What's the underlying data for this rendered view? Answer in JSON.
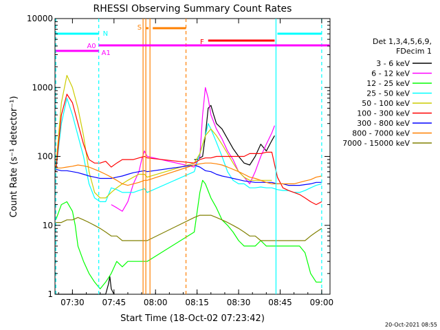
{
  "chart_data": {
    "type": "line",
    "title": "RHESSI Observing Summary Count Rates",
    "xlabel": "Start Time (18-Oct-02 07:23:42)",
    "ylabel": "Count Rate (s⁻¹ detector⁻¹)",
    "yscale": "log",
    "ylim": [
      1,
      10000
    ],
    "xlim": [
      "07:23:42",
      "09:03:00"
    ],
    "x_ticks": [
      "07:30",
      "07:45",
      "08:00",
      "08:15",
      "08:30",
      "08:45",
      "09:00"
    ],
    "y_ticks": [
      "1",
      "10",
      "100",
      "1000",
      "10000"
    ],
    "legend": {
      "header": [
        "Det 1,3,4,5,6,9,",
        "FDecim 1"
      ],
      "placement": "right"
    },
    "series": [
      {
        "name": "3 - 6 keV",
        "color": "#000000",
        "x": [
          "07:24",
          "07:26",
          "07:28",
          "07:30",
          "07:32",
          "07:34",
          "07:36",
          "07:38",
          "07:40",
          "07:42",
          "07:43",
          "07:43.5",
          "07:44",
          "07:45",
          "07:50",
          "07:55",
          "07:57",
          "08:14",
          "08:15",
          "08:17",
          "08:18",
          "08:19",
          "08:20",
          "08:21",
          "08:22",
          "08:24",
          "08:26",
          "08:28",
          "08:30",
          "08:32",
          "08:34",
          "08:36",
          "08:38",
          "08:40",
          "08:42",
          "08:43"
        ],
        "y": [
          1,
          1,
          1,
          1,
          1,
          1,
          1,
          1,
          1,
          1,
          1.4,
          1.8,
          1.2,
          1,
          null,
          null,
          null,
          90,
          90,
          100,
          200,
          500,
          550,
          400,
          300,
          250,
          180,
          130,
          100,
          80,
          75,
          100,
          150,
          120,
          170,
          200
        ]
      },
      {
        "name": "6 - 12 keV",
        "color": "#ff00ff",
        "x": [
          "07:44",
          "07:46",
          "07:48",
          "07:50",
          "07:52",
          "07:54",
          "07:55",
          "07:56",
          "07:57",
          "08:14",
          "08:16",
          "08:17",
          "08:18",
          "08:19",
          "08:20",
          "08:22",
          "08:24",
          "08:26",
          "08:28",
          "08:30",
          "08:32",
          "08:34",
          "08:36",
          "08:38",
          "08:40",
          "08:42",
          "08:43"
        ],
        "y": [
          20,
          18,
          16,
          22,
          40,
          60,
          90,
          120,
          100,
          70,
          100,
          400,
          1000,
          700,
          400,
          250,
          180,
          120,
          90,
          60,
          50,
          40,
          60,
          100,
          150,
          220,
          280
        ]
      },
      {
        "name": "12 - 25 keV",
        "color": "#00ff00",
        "x": [
          "07:24",
          "07:26",
          "07:28",
          "07:30",
          "07:31",
          "07:32",
          "07:34",
          "07:36",
          "07:38",
          "07:40",
          "07:42",
          "07:44",
          "07:46",
          "07:48",
          "07:50",
          "07:52",
          "07:54",
          "07:56",
          "07:57",
          "08:14",
          "08:16",
          "08:17",
          "08:18",
          "08:20",
          "08:22",
          "08:24",
          "08:26",
          "08:28",
          "08:30",
          "08:32",
          "08:34",
          "08:36",
          "08:38",
          "08:40",
          "08:42",
          "08:44",
          "08:46",
          "08:48",
          "08:50",
          "08:52",
          "08:54",
          "08:56",
          "08:58",
          "09:00"
        ],
        "y": [
          12,
          20,
          22,
          16,
          10,
          5,
          3,
          2,
          1.5,
          1.2,
          1.5,
          2,
          3,
          2.5,
          3,
          3,
          3,
          3,
          3,
          8,
          30,
          45,
          40,
          25,
          18,
          12,
          10,
          8,
          6,
          5,
          5,
          5,
          6,
          5,
          5,
          5,
          5,
          5,
          5,
          5,
          4,
          2,
          1.5,
          1.5
        ]
      },
      {
        "name": "25 - 50 keV",
        "color": "#00ffff",
        "x": [
          "07:24",
          "07:26",
          "07:28",
          "07:30",
          "07:32",
          "07:34",
          "07:36",
          "07:38",
          "07:40",
          "07:42",
          "07:44",
          "07:46",
          "07:48",
          "07:50",
          "07:52",
          "07:54",
          "07:56",
          "07:57",
          "08:14",
          "08:16",
          "08:18",
          "08:19",
          "08:20",
          "08:22",
          "08:24",
          "08:26",
          "08:28",
          "08:30",
          "08:32",
          "08:34",
          "08:36",
          "08:38",
          "08:40",
          "08:42",
          "08:44",
          "08:46",
          "08:48",
          "08:50",
          "08:52",
          "08:54",
          "08:56",
          "08:58",
          "09:00"
        ],
        "y": [
          60,
          300,
          700,
          400,
          200,
          100,
          40,
          25,
          22,
          22,
          35,
          33,
          30,
          30,
          30,
          32,
          34,
          30,
          60,
          110,
          200,
          300,
          250,
          160,
          100,
          60,
          45,
          40,
          40,
          35,
          35,
          36,
          35,
          35,
          33,
          32,
          32,
          30,
          30,
          32,
          35,
          38,
          40
        ]
      },
      {
        "name": "50 - 100 keV",
        "color": "#cccc00",
        "x": [
          "07:24",
          "07:26",
          "07:28",
          "07:30",
          "07:32",
          "07:34",
          "07:36",
          "07:38",
          "07:40",
          "07:42",
          "07:44",
          "07:46",
          "07:48",
          "07:50",
          "07:52",
          "07:54",
          "07:56",
          "07:57",
          "08:14",
          "08:16",
          "08:18",
          "08:20",
          "08:22",
          "08:24",
          "08:26",
          "08:28",
          "08:30",
          "08:32",
          "08:34",
          "08:36",
          "08:38",
          "08:40",
          "08:42"
        ],
        "y": [
          70,
          600,
          1500,
          1000,
          500,
          200,
          60,
          30,
          25,
          25,
          30,
          35,
          40,
          45,
          50,
          55,
          55,
          50,
          80,
          110,
          200,
          250,
          200,
          150,
          110,
          80,
          60,
          50,
          45,
          45,
          45,
          45,
          45
        ]
      },
      {
        "name": "100 - 300 keV",
        "color": "#ff0000",
        "x": [
          "07:24",
          "07:26",
          "07:28",
          "07:30",
          "07:32",
          "07:34",
          "07:36",
          "07:38",
          "07:40",
          "07:42",
          "07:44",
          "07:46",
          "07:48",
          "07:50",
          "07:52",
          "07:54",
          "07:56",
          "07:57",
          "08:14",
          "08:16",
          "08:18",
          "08:20",
          "08:22",
          "08:24",
          "08:26",
          "08:28",
          "08:30",
          "08:32",
          "08:34",
          "08:36",
          "08:38",
          "08:40",
          "08:42",
          "08:44",
          "08:46",
          "08:48",
          "08:50",
          "08:52",
          "08:54",
          "08:56",
          "08:58",
          "09:00"
        ],
        "y": [
          60,
          400,
          800,
          600,
          300,
          150,
          90,
          80,
          80,
          85,
          70,
          80,
          90,
          90,
          90,
          95,
          100,
          95,
          80,
          90,
          95,
          95,
          100,
          100,
          100,
          100,
          100,
          100,
          110,
          110,
          110,
          115,
          115,
          50,
          35,
          32,
          30,
          28,
          25,
          22,
          20,
          22
        ]
      },
      {
        "name": "300 - 800 keV",
        "color": "#0000ff",
        "x": [
          "07:24",
          "07:26",
          "07:28",
          "07:30",
          "07:32",
          "07:34",
          "07:36",
          "07:38",
          "07:40",
          "07:42",
          "07:44",
          "07:46",
          "07:48",
          "07:50",
          "07:52",
          "07:54",
          "07:56",
          "07:57",
          "08:14",
          "08:16",
          "08:18",
          "08:20",
          "08:22",
          "08:24",
          "08:26",
          "08:28",
          "08:30",
          "08:32",
          "08:34",
          "08:36",
          "08:38",
          "08:40",
          "08:42",
          "08:44",
          "08:46",
          "08:48",
          "08:50",
          "08:52",
          "08:54",
          "08:56",
          "08:58",
          "09:00"
        ],
        "y": [
          65,
          62,
          62,
          60,
          58,
          55,
          52,
          50,
          48,
          48,
          48,
          50,
          52,
          55,
          58,
          60,
          62,
          60,
          75,
          70,
          62,
          60,
          55,
          52,
          50,
          48,
          46,
          44,
          43,
          42,
          42,
          42,
          42,
          40,
          40,
          38,
          38,
          38,
          39,
          40,
          42,
          42
        ]
      },
      {
        "name": "800 - 7000 keV",
        "color": "#ff8000",
        "x": [
          "07:24",
          "07:26",
          "07:28",
          "07:30",
          "07:32",
          "07:34",
          "07:36",
          "07:38",
          "07:40",
          "07:42",
          "07:44",
          "07:46",
          "07:48",
          "07:50",
          "07:52",
          "07:54",
          "07:56",
          "07:57",
          "08:14",
          "08:16",
          "08:18",
          "08:20",
          "08:22",
          "08:24",
          "08:26",
          "08:28",
          "08:30",
          "08:32",
          "08:34",
          "08:36",
          "08:38",
          "08:40",
          "08:42",
          "08:44",
          "08:46",
          "08:48",
          "08:50",
          "08:52",
          "08:54",
          "08:56",
          "08:58",
          "09:00"
        ],
        "y": [
          68,
          68,
          70,
          72,
          75,
          73,
          70,
          65,
          60,
          55,
          50,
          45,
          40,
          38,
          40,
          42,
          45,
          45,
          75,
          78,
          80,
          80,
          78,
          75,
          70,
          65,
          60,
          55,
          50,
          48,
          45,
          42,
          40,
          40,
          40,
          40,
          40,
          42,
          44,
          46,
          50,
          52
        ]
      },
      {
        "name": "7000 - 15000 keV",
        "color": "#808000",
        "x": [
          "07:24",
          "07:26",
          "07:28",
          "07:30",
          "07:32",
          "07:34",
          "07:36",
          "07:38",
          "07:40",
          "07:42",
          "07:44",
          "07:46",
          "07:48",
          "07:50",
          "07:52",
          "07:54",
          "07:56",
          "07:57",
          "08:14",
          "08:16",
          "08:18",
          "08:20",
          "08:22",
          "08:24",
          "08:26",
          "08:28",
          "08:30",
          "08:32",
          "08:34",
          "08:36",
          "08:38",
          "08:40",
          "08:42",
          "08:44",
          "08:46",
          "08:48",
          "08:50",
          "08:52",
          "08:54",
          "08:56",
          "08:58",
          "09:00"
        ],
        "y": [
          11,
          11,
          12,
          12,
          13,
          12,
          11,
          10,
          9,
          8,
          7,
          7,
          6,
          6,
          6,
          6,
          6,
          6,
          13,
          14,
          14,
          14,
          13,
          12,
          11,
          10,
          9,
          8,
          7,
          7,
          6,
          6,
          6,
          6,
          6,
          6,
          6,
          6,
          6,
          7,
          8,
          9
        ]
      }
    ],
    "annotations": [
      {
        "label": "N",
        "color": "#00ffff",
        "intervals": [
          [
            "07:24",
            "07:39:30"
          ],
          [
            "08:44",
            "09:00"
          ]
        ],
        "level": "top"
      },
      {
        "label": "S",
        "color": "#ff8000",
        "intervals": [
          [
            "07:56:30",
            "07:57:30"
          ],
          [
            "07:59",
            "08:11"
          ]
        ],
        "level": "upper"
      },
      {
        "label": "F",
        "color": "#ff0000",
        "intervals": [
          [
            "08:19",
            "08:43"
          ]
        ],
        "level": "upper-middle"
      },
      {
        "label": "A0",
        "color": "#ff00ff",
        "intervals": [
          [
            "07:39:30",
            "09:03"
          ]
        ],
        "level": "middle"
      },
      {
        "label": "A1",
        "color": "#ff00ff",
        "intervals": [
          [
            "07:24",
            "07:39:30"
          ]
        ],
        "level": "lower"
      }
    ],
    "vlines": [
      {
        "at": "07:24",
        "color": "#00ffff",
        "style": "dashed"
      },
      {
        "at": "07:39:30",
        "color": "#00ffff",
        "style": "dashed"
      },
      {
        "at": "07:55:30",
        "color": "#ff8000",
        "style": "solid"
      },
      {
        "at": "07:56:30",
        "color": "#ff8000",
        "style": "solid"
      },
      {
        "at": "07:58",
        "color": "#ff8000",
        "style": "solid"
      },
      {
        "at": "08:11",
        "color": "#ff8000",
        "style": "dashed"
      },
      {
        "at": "08:43:30",
        "color": "#00ffff",
        "style": "solid"
      },
      {
        "at": "09:00",
        "color": "#00ffff",
        "style": "dashed"
      }
    ],
    "footer_timestamp": "20-Oct-2021 08:55"
  }
}
